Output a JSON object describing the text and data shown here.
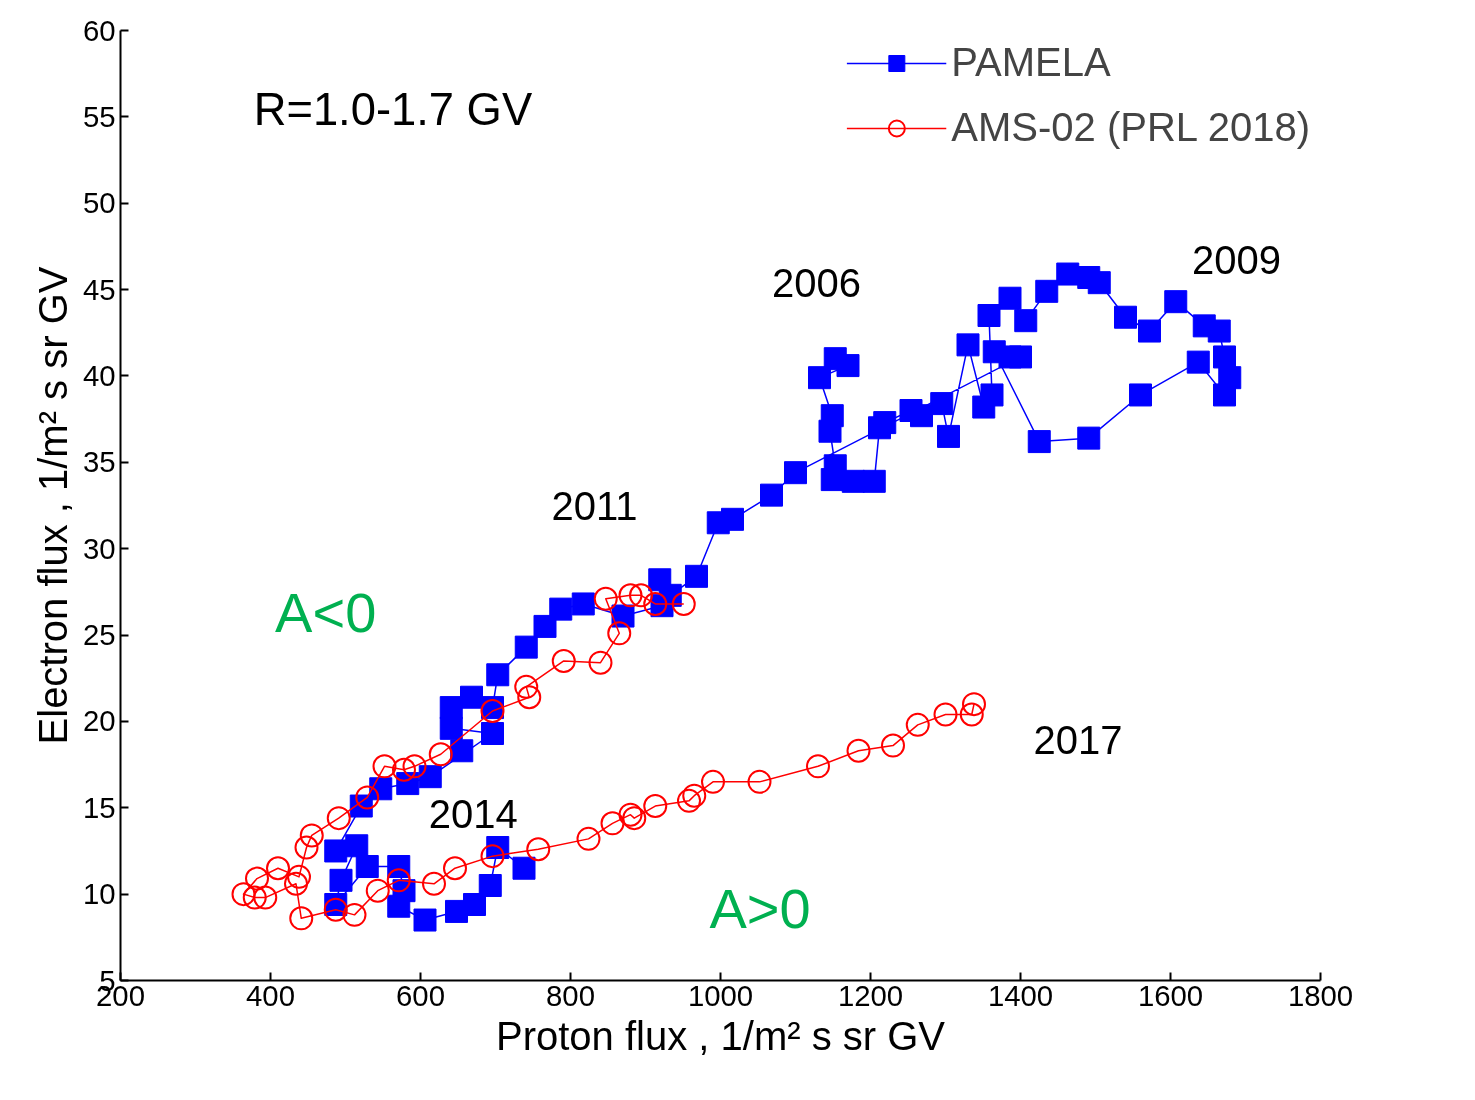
{
  "chart_data": {
    "type": "line",
    "xlabel": "Proton flux , 1/m² s sr GV",
    "ylabel": "Electron flux , 1/m² s sr GV",
    "xlim": [
      200,
      1800
    ],
    "xticks": [
      200,
      400,
      600,
      800,
      1000,
      1200,
      1400,
      1600,
      1800
    ],
    "ylim": [
      5,
      60
    ],
    "yticks": [
      5,
      10,
      15,
      20,
      25,
      30,
      35,
      40,
      45,
      50,
      55,
      60
    ],
    "grid": false,
    "legend": "top right",
    "annotations": [
      "R=1.0-1.7 GV",
      "2006",
      "2009",
      "2011",
      "2014",
      "2017",
      "A<0",
      "A>0"
    ],
    "series": [
      {
        "name": "PAMELA",
        "color": "#0000ff",
        "marker": "square",
        "x": [
          1153,
          1170,
          1132,
          1149,
          1146,
          1153,
          1149,
          1177,
          1205,
          1212,
          1219,
          1254,
          1268,
          1295,
          1304,
          1330,
          1351,
          1362,
          1358,
          1386,
          1407,
          1435,
          1463,
          1491,
          1505,
          1540,
          1572,
          1607,
          1645,
          1665,
          1672,
          1679,
          1672,
          1637,
          1560,
          1491,
          1425,
          1365,
          1386,
          1400,
          1100,
          1068,
          1016,
          997,
          968,
          933,
          919,
          922,
          870,
          817,
          787,
          766,
          741,
          703,
          696,
          668,
          641,
          655,
          641,
          696,
          613,
          583,
          547,
          521,
          487,
          515,
          494,
          487,
          529,
          571,
          578,
          571,
          606,
          648,
          672,
          693,
          703,
          738
        ],
        "values": [
          41.0,
          40.6,
          39.9,
          37.7,
          36.8,
          34.8,
          34.0,
          33.9,
          33.9,
          37.0,
          37.3,
          38.0,
          37.7,
          38.4,
          36.5,
          41.8,
          38.2,
          38.9,
          43.5,
          44.5,
          43.2,
          44.9,
          45.9,
          45.7,
          45.4,
          43.4,
          42.6,
          44.3,
          42.9,
          42.6,
          41.1,
          39.9,
          38.9,
          40.8,
          38.9,
          36.4,
          36.2,
          41.4,
          41.1,
          41.1,
          34.4,
          33.1,
          31.7,
          31.5,
          28.4,
          27.3,
          28.2,
          26.7,
          26.1,
          26.8,
          26.5,
          25.5,
          24.3,
          22.7,
          20.8,
          21.4,
          20.8,
          18.3,
          19.6,
          19.3,
          16.8,
          16.4,
          16.1,
          15.1,
          12.5,
          12.8,
          10.8,
          9.4,
          11.6,
          11.6,
          10.2,
          9.3,
          8.5,
          9.0,
          9.4,
          10.5,
          12.7,
          11.5
        ]
      },
      {
        "name": "AMS-02 (PRL 2018)",
        "color": "#ff0000",
        "marker": "circle",
        "x": [
          951,
          913,
          894,
          880,
          847,
          865,
          840,
          791,
          741,
          745,
          696,
          627,
          592,
          578,
          552,
          529,
          491,
          455,
          448,
          438,
          410,
          382,
          364,
          379,
          393,
          434,
          441,
          487,
          512,
          543,
          571,
          618,
          646,
          696,
          757,
          824,
          856,
          880,
          885,
          913,
          958,
          965,
          990,
          1052,
          1130,
          1184,
          1230,
          1263,
          1300,
          1335,
          1338
        ],
        "values": [
          26.8,
          26.8,
          27.3,
          27.3,
          27.1,
          25.1,
          23.4,
          23.5,
          22.0,
          21.4,
          20.6,
          18.1,
          17.4,
          17.2,
          17.4,
          15.6,
          14.4,
          13.4,
          12.7,
          11.0,
          11.5,
          10.9,
          10.0,
          9.8,
          9.8,
          10.6,
          8.6,
          9.1,
          8.8,
          10.2,
          10.8,
          10.6,
          11.5,
          12.2,
          12.6,
          13.2,
          14.1,
          14.6,
          14.4,
          15.1,
          15.4,
          15.7,
          16.5,
          16.5,
          17.4,
          18.3,
          18.6,
          19.8,
          20.4,
          20.4,
          21.0
        ]
      }
    ]
  }
}
